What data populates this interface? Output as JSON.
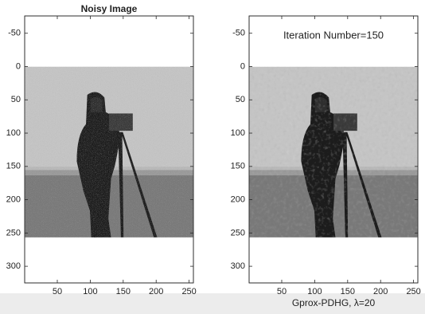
{
  "chart_data": [
    {
      "type": "image",
      "title": "Noisy Image",
      "xlim": [
        0.5,
        256.5
      ],
      "ylim": [
        -76,
        325
      ],
      "xticks": [
        50,
        100,
        150,
        200,
        250
      ],
      "yticks": [
        -50,
        0,
        50,
        100,
        150,
        200,
        250,
        300
      ],
      "extent": [
        0.5,
        256.5
      ],
      "noisy": true
    },
    {
      "type": "image",
      "title": "Iteration Number=150",
      "xlabel": "Gprox-PDHG, λ=20",
      "xlim": [
        0.5,
        256.5
      ],
      "ylim": [
        -76,
        325
      ],
      "xticks": [
        50,
        100,
        150,
        200,
        250
      ],
      "yticks": [
        -50,
        0,
        50,
        100,
        150,
        200,
        250,
        300
      ],
      "extent": [
        0.5,
        256.5
      ],
      "noisy": false
    }
  ]
}
